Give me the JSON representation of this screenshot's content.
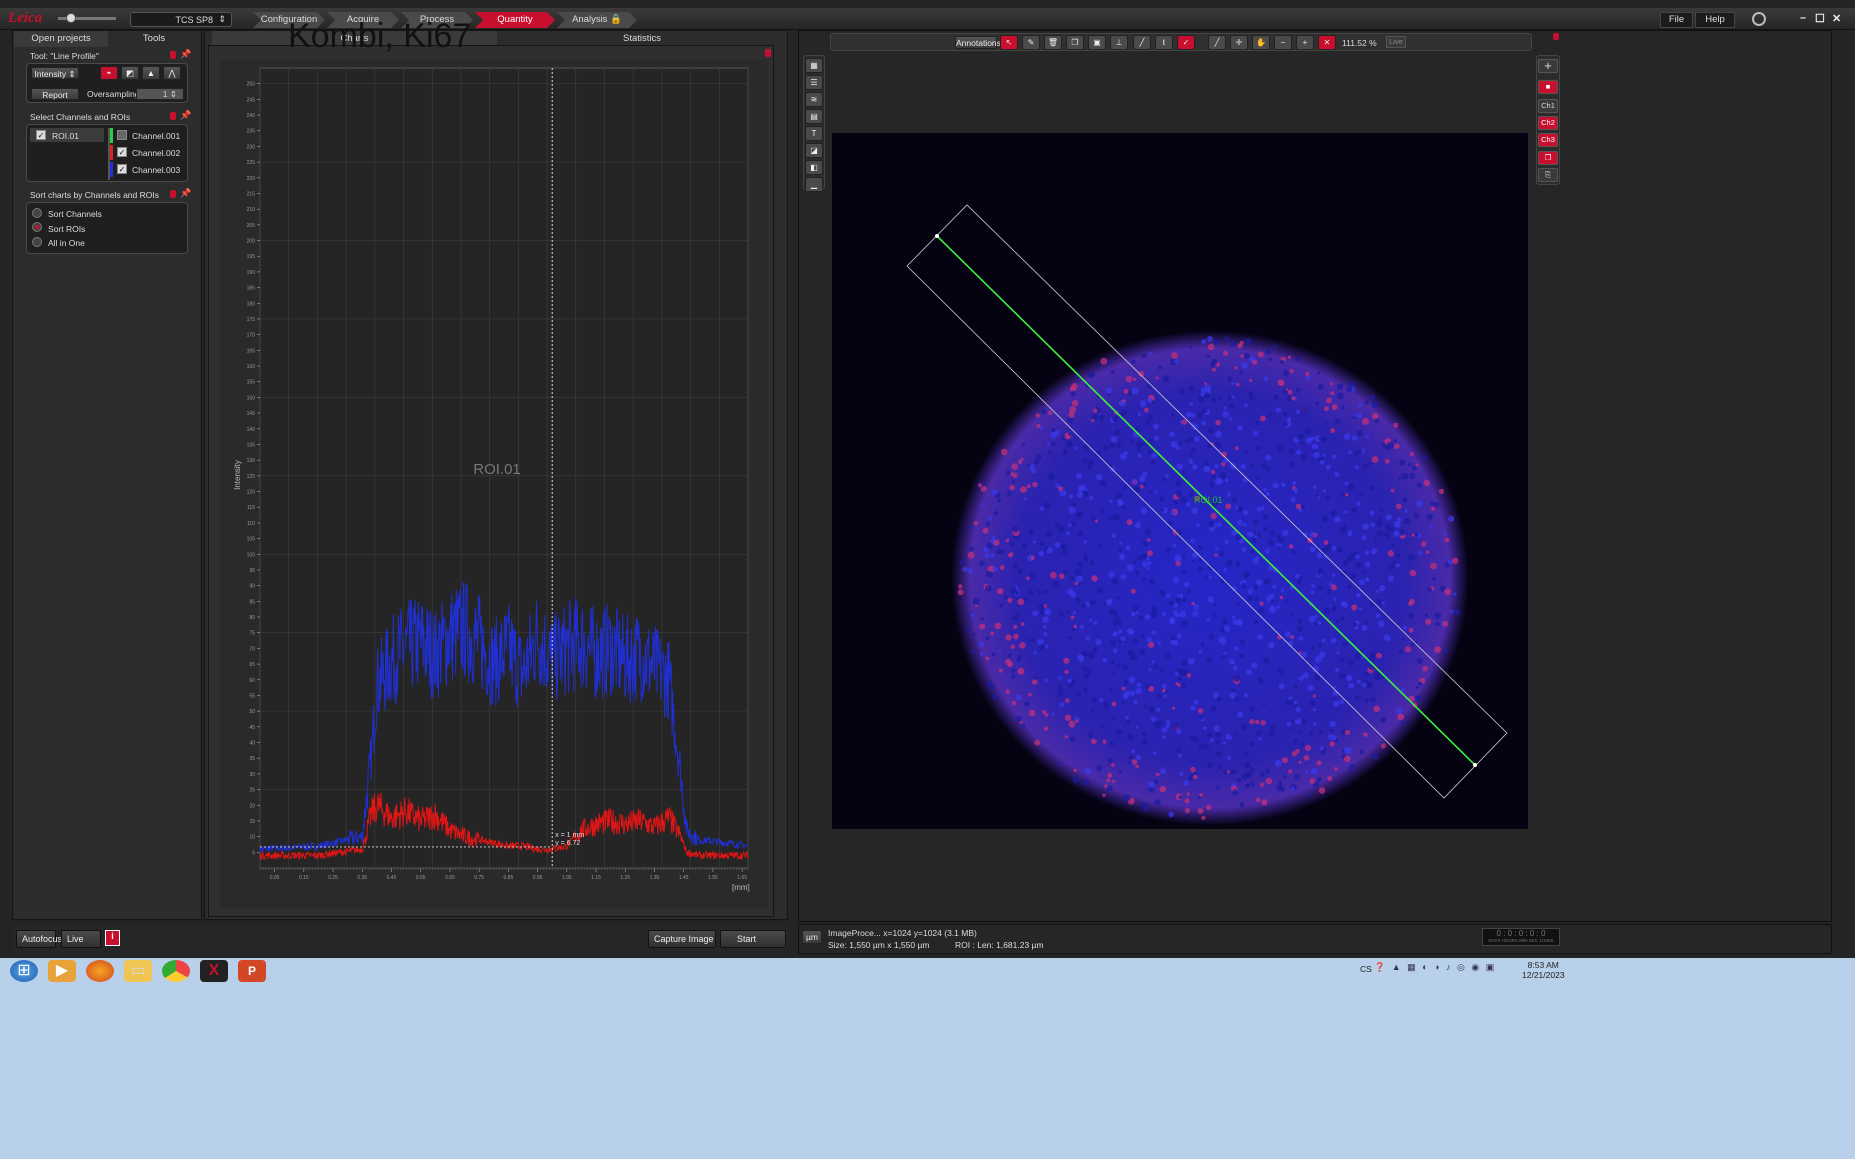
{
  "app": {
    "system_select": "TCS SP8",
    "workflow_tabs": [
      "Configuration",
      "Acquire",
      "Process",
      "Quantity",
      "Analysis"
    ],
    "active_tab": "Quantity",
    "menu": [
      "File",
      "Help"
    ]
  },
  "left_panel": {
    "tabs": [
      "Open projects",
      "Tools"
    ],
    "tool_section": {
      "title": "Tool: \"Line Profile\"",
      "mode_select": "Intensity",
      "report_button": "Report",
      "oversampling_label": "Oversampling",
      "oversampling_value": "1"
    },
    "channels_section": {
      "title": "Select Channels and ROIs",
      "rois": [
        "ROI.01"
      ],
      "channels": [
        {
          "label": "Channel.001",
          "color": "#2ecc40",
          "checked": false
        },
        {
          "label": "Channel.002",
          "color": "#e02020",
          "checked": true
        },
        {
          "label": "Channel.003",
          "color": "#2030e0",
          "checked": true
        }
      ]
    },
    "sort_section": {
      "title": "Sort charts by Channels and ROIs",
      "options": [
        "Sort Channels",
        "Sort ROIs",
        "All in One"
      ],
      "selected": "Sort ROIs"
    }
  },
  "chart_panel": {
    "overlay_title": "Kombi, Ki67",
    "tabs": [
      "Charts",
      "Statistics"
    ],
    "capture_button": "Capture Image",
    "start_button": "Start"
  },
  "chart_data": {
    "type": "line",
    "title": "ROI.01",
    "xlabel": "[mm]",
    "ylabel": "Intensity",
    "xlim": [
      0,
      1.67
    ],
    "ylim": [
      0,
      255
    ],
    "x_ticks": [
      "0.05",
      "0.15",
      "0.25",
      "0.35",
      "0.45",
      "0.55",
      "0.65",
      "0.75",
      "0.85",
      "0.95",
      "1.05",
      "1.15",
      "1.25",
      "1.35",
      "1.45",
      "1.55",
      "1.65"
    ],
    "y_ticks": [
      5,
      10,
      15,
      20,
      25,
      30,
      35,
      40,
      45,
      50,
      55,
      60,
      65,
      70,
      75,
      80,
      85,
      90,
      95,
      100,
      105,
      110,
      115,
      120,
      125,
      130,
      135,
      140,
      145,
      150,
      155,
      160,
      165,
      170,
      175,
      180,
      185,
      190,
      195,
      200,
      205,
      210,
      215,
      220,
      225,
      230,
      235,
      240,
      245,
      250
    ],
    "cursor": {
      "x": 1.0,
      "label_x": "x = 1 mm",
      "label_y": "y = 6.72"
    },
    "series": [
      {
        "color": "#1f2fd0",
        "x": [
          0,
          0.2,
          0.35,
          0.38,
          0.4,
          0.45,
          0.5,
          0.55,
          0.6,
          0.65,
          0.7,
          0.75,
          0.8,
          0.85,
          0.9,
          0.95,
          1.0,
          1.05,
          1.1,
          1.15,
          1.2,
          1.25,
          1.3,
          1.35,
          1.4,
          1.44,
          1.46,
          1.5,
          1.6,
          1.67
        ],
        "values": [
          6,
          7,
          10,
          35,
          58,
          66,
          70,
          72,
          68,
          74,
          76,
          72,
          65,
          70,
          62,
          74,
          66,
          70,
          72,
          68,
          70,
          66,
          68,
          64,
          60,
          30,
          12,
          9,
          8,
          7
        ]
      },
      {
        "color": "#e01515",
        "x": [
          0,
          0.2,
          0.35,
          0.38,
          0.4,
          0.45,
          0.5,
          0.55,
          0.6,
          0.65,
          0.7,
          0.75,
          0.8,
          0.85,
          0.9,
          0.95,
          1.0,
          1.05,
          1.1,
          1.15,
          1.2,
          1.25,
          1.3,
          1.35,
          1.4,
          1.44,
          1.46,
          1.5,
          1.6,
          1.67
        ],
        "values": [
          4,
          4,
          6,
          17,
          20,
          16,
          18,
          15,
          17,
          12,
          10,
          9,
          8,
          7,
          7,
          6,
          6,
          7,
          12,
          14,
          15,
          14,
          15,
          13,
          16,
          10,
          5,
          4,
          4,
          4
        ]
      }
    ]
  },
  "viewer": {
    "annotations_button": "Annotations",
    "zoom": "111.52 %",
    "live_label": "Live",
    "roi_label": "ROI.01",
    "right_tools": [
      "+",
      "■",
      "Ch1",
      "Ch2",
      "Ch3"
    ],
    "status_line1": "ImageProce... x=1024 y=1024  (3.1 MB)",
    "status_line2": "Size: 1,550 µm x 1,550 µm",
    "roi_info": "ROI :   Len: 1,681.23 µm",
    "unit_button": "µm",
    "timer": "0 : 0 : 0 : 0 : 0",
    "timer_units": "DAYS  HOURS  MIN  SEC  1/100S"
  },
  "bottom_bar": {
    "autofocus": "Autofocus",
    "live": "Live"
  },
  "taskbar": {
    "clock_time": "8:53 AM",
    "clock_date": "12/21/2023",
    "lang": "CS"
  }
}
